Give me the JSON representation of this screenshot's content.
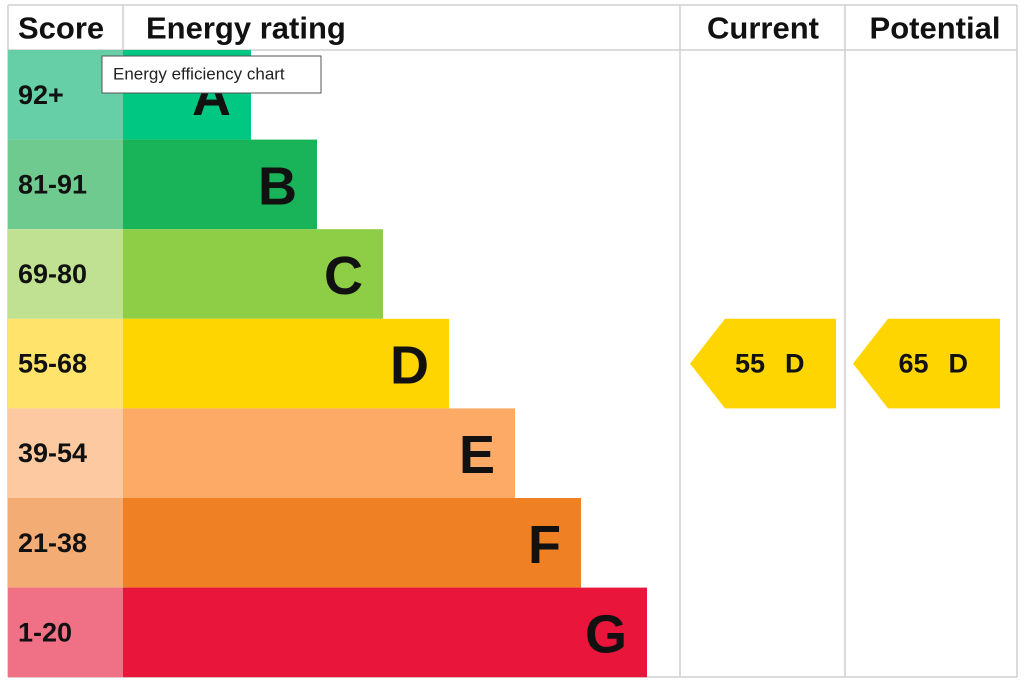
{
  "header": {
    "score": "Score",
    "rating": "Energy rating",
    "current": "Current",
    "potential": "Potential"
  },
  "bands": [
    {
      "score": "92+",
      "letter": "A",
      "color": "#00c781",
      "tint": "#66cfa8"
    },
    {
      "score": "81-91",
      "letter": "B",
      "color": "#19b459",
      "tint": "#6fca8f"
    },
    {
      "score": "69-80",
      "letter": "C",
      "color": "#8dce46",
      "tint": "#bfe191"
    },
    {
      "score": "55-68",
      "letter": "D",
      "color": "#ffd500",
      "tint": "#ffe36b"
    },
    {
      "score": "39-54",
      "letter": "E",
      "color": "#fcaa65",
      "tint": "#fdc9a1"
    },
    {
      "score": "21-38",
      "letter": "F",
      "color": "#ef8023",
      "tint": "#f3ac74"
    },
    {
      "score": "1-20",
      "letter": "G",
      "color": "#e9153b",
      "tint": "#f07086"
    }
  ],
  "current": {
    "score": 55,
    "band": "D"
  },
  "potential": {
    "score": 65,
    "band": "D"
  },
  "tooltip": "Energy efficiency chart"
}
